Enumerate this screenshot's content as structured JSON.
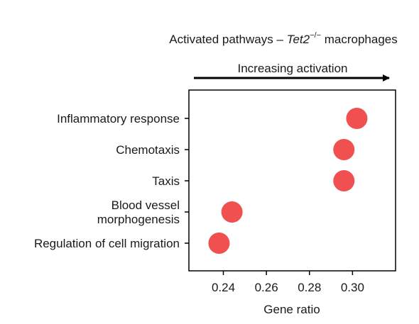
{
  "chart_data": {
    "type": "scatter",
    "title_main": "Activated pathways – ",
    "title_gene": "Tet2",
    "title_superscript": "−/−",
    "title_suffix": " macrophages",
    "arrow_label": "Increasing activation",
    "xlabel": "Gene ratio",
    "xlim": [
      0.224,
      0.32
    ],
    "x_ticks": [
      "0.24",
      "0.26",
      "0.28",
      "0.30"
    ],
    "x_tick_values": [
      0.24,
      0.26,
      0.28,
      0.3
    ],
    "categories": [
      "Inflammatory response",
      "Chemotaxis",
      "Taxis",
      "Blood vessel morphogenesis",
      "Regulation of cell migration"
    ],
    "category_lines": [
      [
        "Inflammatory response"
      ],
      [
        "Chemotaxis"
      ],
      [
        "Taxis"
      ],
      [
        "Blood vessel",
        "morphogenesis"
      ],
      [
        "Regulation of cell migration"
      ]
    ],
    "values": [
      0.302,
      0.296,
      0.296,
      0.244,
      0.238
    ],
    "marker_color": "#f05050",
    "grid": false
  }
}
